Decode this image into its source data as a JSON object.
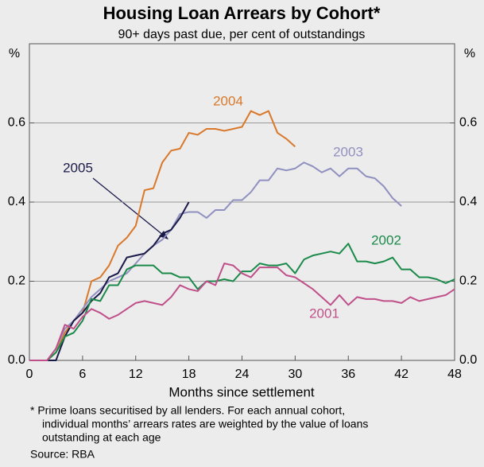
{
  "chart_data": {
    "type": "line",
    "title": "Housing Loan Arrears by Cohort*",
    "subtitle": "90+ days past due, per cent of outstandings",
    "y_unit": "%",
    "x_label": "Months since settlement",
    "footnote": [
      "*   Prime loans securitised by all lenders.  For each annual cohort,",
      "individual months’ arrears rates are weighted by the value of loans",
      "outstanding at each age"
    ],
    "source": "Source: RBA",
    "grid": true,
    "xlim": [
      0,
      48
    ],
    "xticks": [
      0,
      6,
      12,
      18,
      24,
      30,
      36,
      42,
      48
    ],
    "ylim": [
      0,
      0.8
    ],
    "yticks": [
      {
        "value": 0,
        "label": "0.0"
      },
      0.2,
      0.4,
      0.6
    ],
    "y2lim": [
      0,
      0.8
    ],
    "y2ticks": [
      {
        "value": 0,
        "label": "0.0"
      },
      0.2,
      0.4,
      0.6
    ],
    "x": [
      0,
      1,
      2,
      3,
      4,
      5,
      6,
      7,
      8,
      9,
      10,
      11,
      12,
      13,
      14,
      15,
      16,
      17,
      18,
      19,
      20,
      21,
      22,
      23,
      24,
      25,
      26,
      27,
      28,
      29,
      30,
      31,
      32,
      33,
      34,
      35,
      36,
      37,
      38,
      39,
      40,
      41,
      42,
      43,
      44,
      45,
      46,
      47,
      48
    ],
    "series": [
      {
        "name": "2004",
        "color": "#d9782a",
        "values": [
          0,
          0,
          0,
          0.02,
          0.07,
          0.1,
          0.12,
          0.2,
          0.21,
          0.24,
          0.29,
          0.31,
          0.34,
          0.43,
          0.435,
          0.5,
          0.53,
          0.535,
          0.575,
          0.57,
          0.585,
          0.585,
          0.58,
          0.585,
          0.59,
          0.63,
          0.62,
          0.63,
          0.575,
          0.56,
          0.54,
          null,
          null,
          null,
          null,
          null,
          null,
          null,
          null,
          null,
          null,
          null,
          null,
          null,
          null,
          null,
          null,
          null,
          null
        ]
      },
      {
        "name": "2003",
        "color": "#9090c0",
        "values": [
          0,
          0,
          0,
          0.03,
          0.08,
          0.1,
          0.13,
          0.16,
          0.18,
          0.2,
          0.21,
          0.22,
          0.245,
          0.27,
          0.29,
          0.305,
          0.33,
          0.37,
          0.375,
          0.375,
          0.36,
          0.38,
          0.38,
          0.405,
          0.405,
          0.425,
          0.455,
          0.455,
          0.485,
          0.48,
          0.485,
          0.5,
          0.49,
          0.475,
          0.485,
          0.465,
          0.485,
          0.485,
          0.465,
          0.46,
          0.44,
          0.41,
          0.39,
          null,
          null,
          null,
          null,
          null,
          null
        ]
      },
      {
        "name": "2005",
        "color": "#1a1a4a",
        "values": [
          0,
          0,
          0,
          0,
          0.06,
          0.1,
          0.12,
          0.15,
          0.17,
          0.21,
          0.22,
          0.26,
          0.265,
          0.27,
          0.29,
          0.32,
          0.33,
          0.36,
          0.4,
          null,
          null,
          null,
          null,
          null,
          null,
          null,
          null,
          null,
          null,
          null,
          null,
          null,
          null,
          null,
          null,
          null,
          null,
          null,
          null,
          null,
          null,
          null,
          null,
          null,
          null,
          null,
          null,
          null,
          null
        ]
      },
      {
        "name": "2002",
        "color": "#1a8a4a",
        "values": [
          0,
          0,
          0,
          0.02,
          0.06,
          0.07,
          0.1,
          0.155,
          0.15,
          0.19,
          0.19,
          0.23,
          0.24,
          0.24,
          0.24,
          0.22,
          0.22,
          0.21,
          0.21,
          0.18,
          0.2,
          0.2,
          0.205,
          0.2,
          0.225,
          0.225,
          0.245,
          0.24,
          0.24,
          0.245,
          0.22,
          0.255,
          0.265,
          0.27,
          0.275,
          0.27,
          0.295,
          0.25,
          0.25,
          0.245,
          0.25,
          0.26,
          0.23,
          0.23,
          0.21,
          0.21,
          0.205,
          0.195,
          0.205
        ]
      },
      {
        "name": "2001",
        "color": "#c0508a",
        "values": [
          0,
          0,
          0,
          0.03,
          0.09,
          0.08,
          0.11,
          0.13,
          0.12,
          0.105,
          0.115,
          0.13,
          0.145,
          0.15,
          0.145,
          0.14,
          0.16,
          0.19,
          0.18,
          0.175,
          0.2,
          0.19,
          0.245,
          0.24,
          0.22,
          0.21,
          0.235,
          0.235,
          0.235,
          0.215,
          0.21,
          0.195,
          0.18,
          0.16,
          0.14,
          0.165,
          0.14,
          0.16,
          0.155,
          0.155,
          0.15,
          0.15,
          0.145,
          0.16,
          0.15,
          0.155,
          0.16,
          0.165,
          0.18
        ]
      }
    ]
  }
}
